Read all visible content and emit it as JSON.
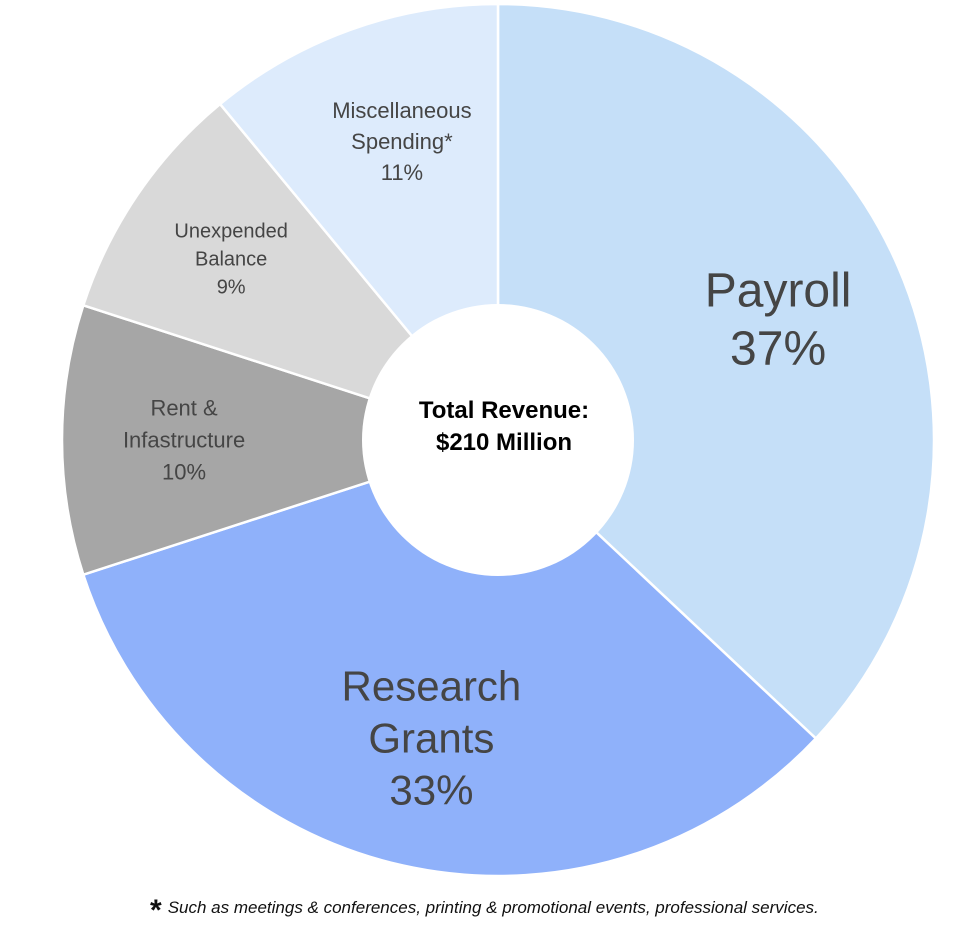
{
  "chart_data": {
    "type": "pie",
    "variant": "donut",
    "center_label": [
      "Total Revenue:",
      "$210 Million"
    ],
    "slices": [
      {
        "label_lines": [
          "Payroll"
        ],
        "value": 37,
        "value_label": "37%",
        "color": "#c5dff8"
      },
      {
        "label_lines": [
          "Research",
          "Grants"
        ],
        "value": 33,
        "value_label": "33%",
        "color": "#8fb1fa"
      },
      {
        "label_lines": [
          "Rent &",
          "Infastructure"
        ],
        "value": 10,
        "value_label": "10%",
        "color": "#a6a6a6"
      },
      {
        "label_lines": [
          "Unexpended",
          "Balance"
        ],
        "value": 9,
        "value_label": "9%",
        "color": "#d9d9d9"
      },
      {
        "label_lines": [
          "Miscellaneous",
          "Spending*"
        ],
        "value": 11,
        "value_label": "11%",
        "color": "#ddebfc"
      }
    ],
    "start": "top",
    "direction": "clockwise"
  },
  "footnote": {
    "marker": "*",
    "text": "Such as meetings & conferences, printing & promotional events, professional services."
  }
}
